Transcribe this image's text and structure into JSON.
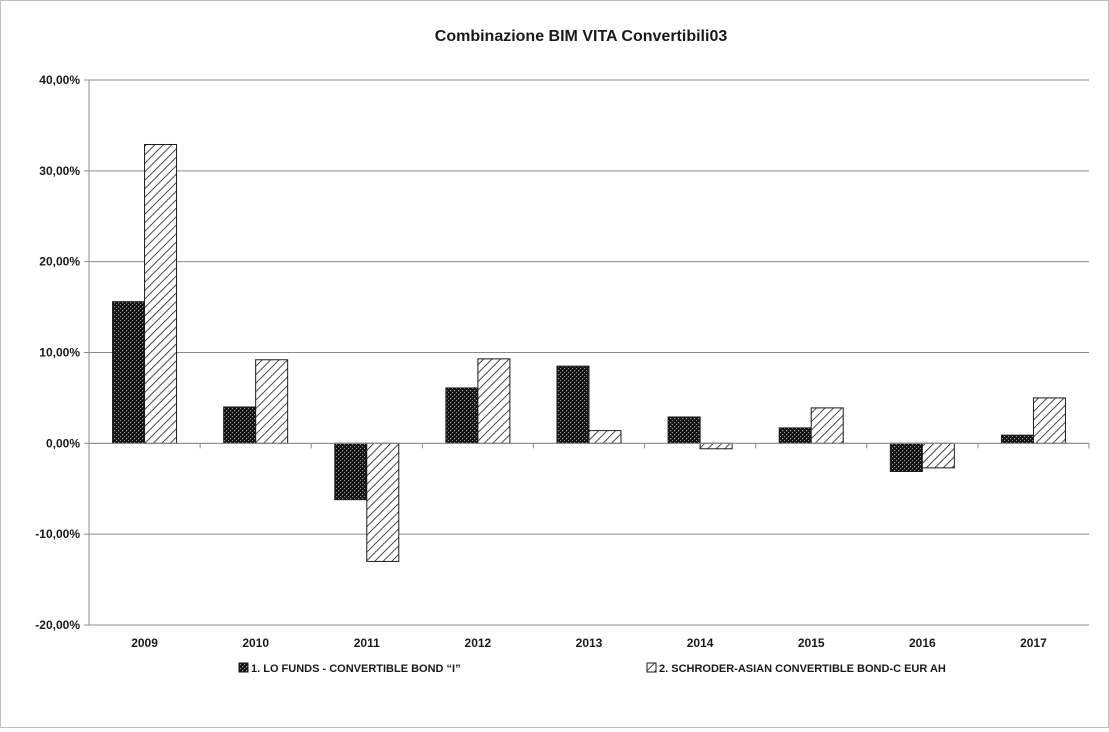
{
  "chart_data": {
    "type": "bar",
    "title": "Combinazione BIM VITA Convertibili03",
    "xlabel": "",
    "ylabel": "",
    "categories": [
      "2009",
      "2010",
      "2011",
      "2012",
      "2013",
      "2014",
      "2015",
      "2016",
      "2017"
    ],
    "ylim": [
      -20,
      40
    ],
    "yticks": [
      -20,
      -10,
      0,
      10,
      20,
      30,
      40
    ],
    "ytick_labels": [
      "-20,00%",
      "-10,00%",
      "0,00%",
      "10,00%",
      "20,00%",
      "30,00%",
      "40,00%"
    ],
    "grid": true,
    "legend_position": "bottom",
    "series": [
      {
        "name": "1. LO FUNDS - CONVERTIBLE BOND “I”",
        "pattern": "dots",
        "color": "#1a1a1a",
        "values": [
          15.6,
          4.0,
          -6.2,
          6.1,
          8.5,
          2.9,
          1.7,
          -3.1,
          0.9
        ]
      },
      {
        "name": "2. SCHRODER-ASIAN CONVERTIBLE BOND-C EUR AH",
        "pattern": "diagonal-hatch",
        "color": "#1a1a1a",
        "values": [
          32.9,
          9.2,
          -13.0,
          9.3,
          1.4,
          -0.6,
          3.9,
          -2.7,
          5.0
        ]
      }
    ]
  }
}
